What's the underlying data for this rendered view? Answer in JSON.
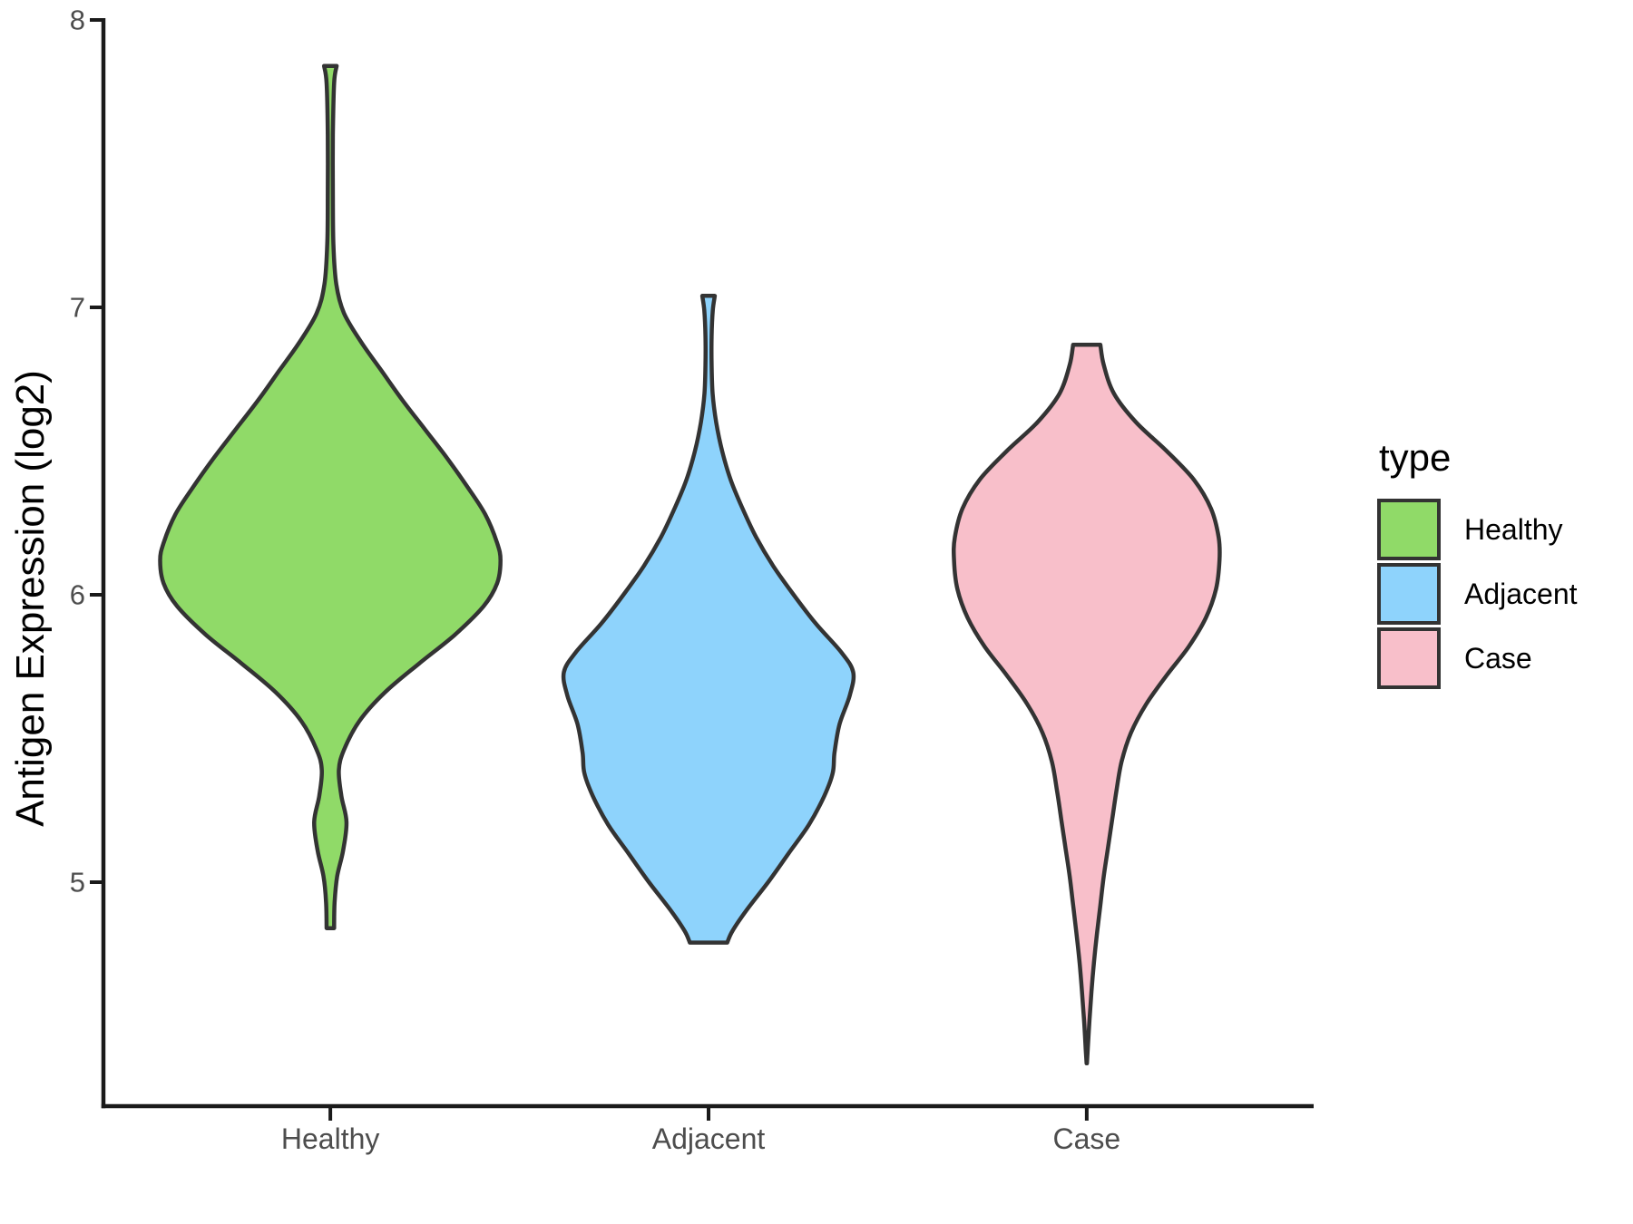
{
  "figure": {
    "y_axis": {
      "title": "Antigen Expression (log2)",
      "tick_values": [
        8,
        7,
        6,
        5
      ],
      "tick_labels": [
        "8",
        "7",
        "6",
        "5"
      ]
    },
    "x_axis": {
      "categories": [
        "Healthy",
        "Adjacent",
        "Case"
      ]
    },
    "legend": {
      "title": "type",
      "entries": [
        {
          "label": "Healthy",
          "color": "#90DA68"
        },
        {
          "label": "Adjacent",
          "color": "#8ED3FC"
        },
        {
          "label": "Case",
          "color": "#F8BFCA"
        }
      ]
    },
    "colors": {
      "outline": "#333333",
      "axis": "#1a1a1a",
      "tick_text": "#4d4d4d",
      "title_text": "#000000",
      "background": "#ffffff"
    }
  },
  "chart_data": {
    "type": "violin",
    "title": "",
    "xlabel": "",
    "ylabel": "Antigen Expression (log2)",
    "categories": [
      "Healthy",
      "Adjacent",
      "Case"
    ],
    "ylim": [
      4.2,
      8.0
    ],
    "y_ticks": [
      5,
      6,
      7,
      8
    ],
    "grid": false,
    "legend_position": "right",
    "legend_title": "type",
    "series": [
      {
        "name": "Healthy",
        "color": "#90DA68",
        "data_range": [
          4.84,
          7.84
        ],
        "peak_value": 6.12,
        "profile": [
          [
            7.84,
            0.037
          ],
          [
            7.78,
            0.022
          ],
          [
            7.6,
            0.015
          ],
          [
            7.4,
            0.015
          ],
          [
            7.22,
            0.018
          ],
          [
            7.08,
            0.035
          ],
          [
            6.98,
            0.08
          ],
          [
            6.88,
            0.18
          ],
          [
            6.78,
            0.3
          ],
          [
            6.68,
            0.42
          ],
          [
            6.58,
            0.55
          ],
          [
            6.48,
            0.68
          ],
          [
            6.38,
            0.8
          ],
          [
            6.28,
            0.91
          ],
          [
            6.18,
            0.98
          ],
          [
            6.12,
            1.0
          ],
          [
            6.04,
            0.98
          ],
          [
            5.96,
            0.9
          ],
          [
            5.86,
            0.73
          ],
          [
            5.76,
            0.52
          ],
          [
            5.66,
            0.32
          ],
          [
            5.56,
            0.17
          ],
          [
            5.46,
            0.08
          ],
          [
            5.39,
            0.05
          ],
          [
            5.3,
            0.065
          ],
          [
            5.21,
            0.095
          ],
          [
            5.11,
            0.075
          ],
          [
            5.02,
            0.04
          ],
          [
            4.93,
            0.025
          ],
          [
            4.84,
            0.022
          ]
        ]
      },
      {
        "name": "Adjacent",
        "color": "#8ED3FC",
        "data_range": [
          4.79,
          7.04
        ],
        "peak_value": 5.73,
        "profile": [
          [
            7.04,
            0.037
          ],
          [
            6.99,
            0.025
          ],
          [
            6.9,
            0.018
          ],
          [
            6.8,
            0.018
          ],
          [
            6.7,
            0.024
          ],
          [
            6.6,
            0.045
          ],
          [
            6.5,
            0.08
          ],
          [
            6.4,
            0.13
          ],
          [
            6.3,
            0.2
          ],
          [
            6.2,
            0.28
          ],
          [
            6.1,
            0.38
          ],
          [
            6.0,
            0.5
          ],
          [
            5.9,
            0.63
          ],
          [
            5.8,
            0.78
          ],
          [
            5.73,
            0.85
          ],
          [
            5.65,
            0.83
          ],
          [
            5.55,
            0.77
          ],
          [
            5.45,
            0.74
          ],
          [
            5.38,
            0.73
          ],
          [
            5.3,
            0.68
          ],
          [
            5.2,
            0.59
          ],
          [
            5.1,
            0.47
          ],
          [
            5.0,
            0.35
          ],
          [
            4.9,
            0.22
          ],
          [
            4.83,
            0.14
          ],
          [
            4.79,
            0.11
          ]
        ]
      },
      {
        "name": "Case",
        "color": "#F8BFCA",
        "data_range": [
          4.37,
          6.87
        ],
        "peak_value": 6.12,
        "profile": [
          [
            6.87,
            0.08
          ],
          [
            6.8,
            0.1
          ],
          [
            6.7,
            0.16
          ],
          [
            6.6,
            0.29
          ],
          [
            6.5,
            0.47
          ],
          [
            6.4,
            0.63
          ],
          [
            6.3,
            0.73
          ],
          [
            6.2,
            0.775
          ],
          [
            6.12,
            0.78
          ],
          [
            6.02,
            0.76
          ],
          [
            5.92,
            0.7
          ],
          [
            5.82,
            0.6
          ],
          [
            5.72,
            0.47
          ],
          [
            5.62,
            0.35
          ],
          [
            5.52,
            0.26
          ],
          [
            5.42,
            0.205
          ],
          [
            5.32,
            0.175
          ],
          [
            5.22,
            0.15
          ],
          [
            5.12,
            0.125
          ],
          [
            5.02,
            0.1
          ],
          [
            4.92,
            0.08
          ],
          [
            4.82,
            0.06
          ],
          [
            4.72,
            0.042
          ],
          [
            4.62,
            0.028
          ],
          [
            4.52,
            0.016
          ],
          [
            4.42,
            0.006
          ],
          [
            4.37,
            0.001
          ]
        ]
      }
    ]
  }
}
